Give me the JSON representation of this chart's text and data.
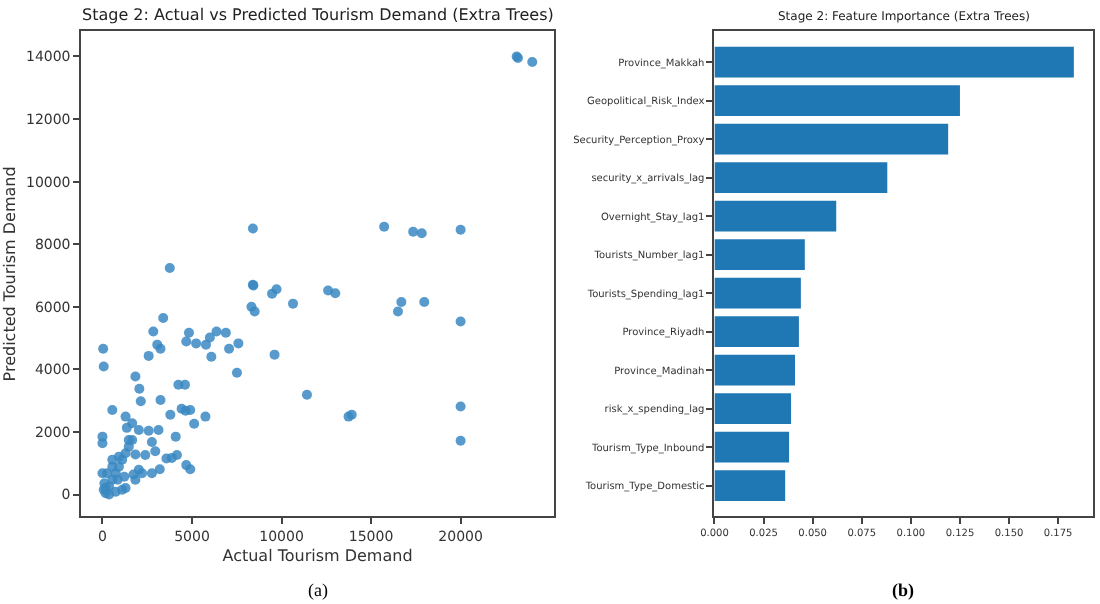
{
  "chart_data": [
    {
      "type": "scatter",
      "title": "Stage 2: Actual vs Predicted Tourism Demand (Extra Trees)",
      "xlabel": "Actual Tourism Demand",
      "ylabel": "Predicted Tourism Demand",
      "annotations": [
        "(a)"
      ],
      "marker": "circle",
      "series": [
        {
          "color": "#3a88c2",
          "x": [
            23130,
            23200,
            24000,
            3760,
            8400,
            8400,
            15730,
            17350,
            17830,
            20000,
            9470,
            9720,
            12600,
            13000,
            8430,
            8320,
            8500,
            10640,
            16500,
            16690,
            17970,
            20000,
            20000,
            20000,
            11420,
            13740,
            13920,
            9610,
            7510,
            7590,
            6890,
            7070,
            6370,
            6000,
            5780,
            6080,
            5230,
            4830,
            4680,
            3390,
            2840,
            3060,
            3240,
            2580,
            40,
            70,
            5750,
            5120,
            4420,
            4900,
            4640,
            4240,
            4610,
            4090,
            3790,
            3240,
            1840,
            2060,
            2140,
            550,
            1290,
            0,
            0,
            0,
            4900,
            4680,
            3200,
            2760,
            3570,
            3870,
            4160,
            2950,
            2390,
            2760,
            3130,
            2580,
            2030,
            1470,
            1840,
            2030,
            1730,
            1290,
            180,
            370,
            550,
            740,
            920,
            1100,
            1290,
            1470,
            1660,
            370,
            740,
            1100,
            110,
            260,
            550,
            920,
            1360,
            1660,
            550,
            70,
            850,
            1220,
            1840,
            2210,
            180
          ],
          "values": [
            14000,
            13950,
            13820,
            7240,
            8500,
            6700,
            8560,
            8400,
            8350,
            8460,
            6420,
            6560,
            6520,
            6430,
            6680,
            6000,
            5850,
            6100,
            5850,
            6150,
            6150,
            5530,
            2810,
            1720,
            3190,
            2490,
            2550,
            4470,
            3890,
            4830,
            5170,
            4660,
            5210,
            5020,
            4790,
            4400,
            4830,
            5170,
            4890,
            5640,
            5210,
            4790,
            4660,
            4430,
            4660,
            4090,
            2490,
            2260,
            2740,
            2700,
            2680,
            3510,
            3510,
            1850,
            2550,
            3020,
            3770,
            3380,
            2980,
            2700,
            2490,
            1850,
            1640,
            680,
            810,
            940,
            810,
            680,
            1150,
            1170,
            1260,
            1380,
            1260,
            1680,
            2060,
            2040,
            2060,
            1740,
            1280,
            790,
            640,
            210,
            40,
            260,
            470,
            680,
            890,
            1110,
            1320,
            1530,
            1740,
            0,
            90,
            150,
            360,
            680,
            890,
            1210,
            2130,
            2280,
            1110,
            150,
            470,
            570,
            470,
            680,
            210
          ]
        }
      ],
      "xlim": [
        -1180,
        25200
      ],
      "xticks": [
        0,
        5000,
        10000,
        15000,
        20000
      ],
      "ylim": [
        -700,
        14800
      ],
      "yticks": [
        0,
        2000,
        4000,
        6000,
        8000,
        10000,
        12000,
        14000
      ]
    },
    {
      "type": "bar",
      "orientation": "horizontal",
      "title": "Stage 2: Feature Importance (Extra Trees)",
      "annotations": [
        "(b)"
      ],
      "categories": [
        "Province_Makkah",
        "Geopolitical_Risk_Index",
        "Security_Perception_Proxy",
        "security_x_arrivals_lag",
        "Overnight_Stay_lag1",
        "Tourists_Number_lag1",
        "Tourists_Spending_lag1",
        "Province_Riyadh",
        "Province_Madinah",
        "risk_x_spending_lag",
        "Tourism_Type_Inbound",
        "Tourism_Type_Domestic"
      ],
      "values": [
        0.183,
        0.125,
        0.119,
        0.088,
        0.062,
        0.046,
        0.044,
        0.043,
        0.041,
        0.039,
        0.038,
        0.036
      ],
      "color": "#1f77b4",
      "xlim": [
        0,
        0.193
      ],
      "xticks": [
        {
          "value": 0,
          "label": "0.000"
        },
        {
          "value": 0.025,
          "label": "0.025"
        },
        {
          "value": 0.05,
          "label": "0.050"
        },
        {
          "value": 0.075,
          "label": "0.075"
        },
        {
          "value": 0.1,
          "label": "0.100"
        },
        {
          "value": 0.125,
          "label": "0.125"
        },
        {
          "value": 0.15,
          "label": "0.150"
        },
        {
          "value": 0.175,
          "label": "0.175"
        }
      ]
    }
  ]
}
